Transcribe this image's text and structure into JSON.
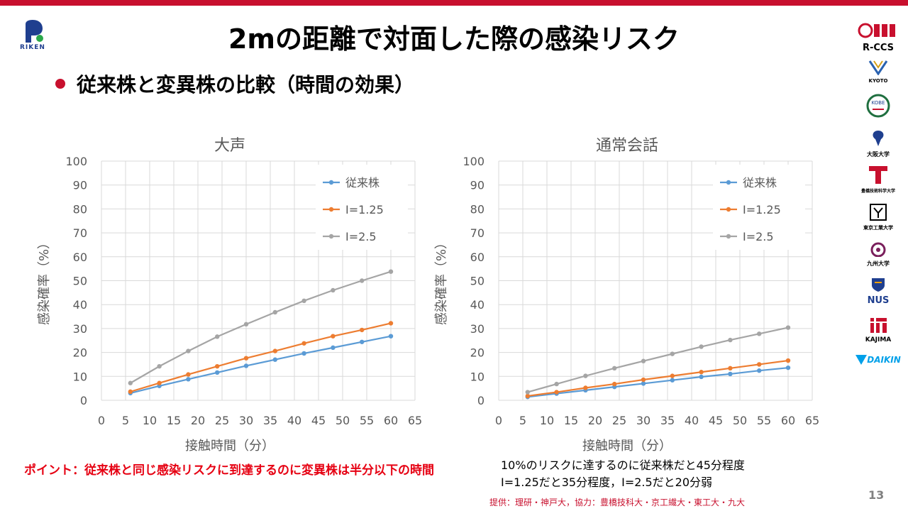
{
  "slide": {
    "title": "2mの距離で対面した際の感染リスク",
    "subtitle": "従来株と変異株の比較（時間の効果）",
    "point_text": "ポイント：従来株と同じ感染リスクに到達するのに変異株は半分以下の時間",
    "note_line1": "10%のリスクに達するのに従来株だと45分程度",
    "note_line2": "I=1.25だと35分程度，I=2.5だと20分弱",
    "credit": "提供：理研・神戸大，協力：豊橋技科大・京工繊大・東工大・九大",
    "page_number": "13",
    "colors": {
      "accent": "#c8102e",
      "point_text": "#e60012"
    }
  },
  "logos": {
    "riken": "RIKEN",
    "rccs": "R-CCS",
    "kyoto": "KYOTO",
    "kobe": "KOBE",
    "osaka": "大阪大学",
    "toyohashi": "豊橋技術科学大学",
    "tokyo_tech": "東京工業大学",
    "kyushu": "九州大学",
    "nus": "NUS",
    "kajima": "KAJIMA",
    "daikin": "DAIKIN"
  },
  "chart_data": [
    {
      "type": "line",
      "title": "大声",
      "xlabel": "接触時間（分）",
      "ylabel": "感染確率（%）",
      "xlim": [
        0,
        65
      ],
      "ylim": [
        0,
        100
      ],
      "xticks": [
        0,
        5,
        10,
        15,
        20,
        25,
        30,
        35,
        40,
        45,
        50,
        55,
        60,
        65
      ],
      "yticks": [
        0,
        10,
        20,
        30,
        40,
        50,
        60,
        70,
        80,
        90,
        100
      ],
      "grid": true,
      "legend_position": "top-right",
      "x": [
        6,
        12,
        18,
        24,
        30,
        36,
        42,
        48,
        54,
        60
      ],
      "series": [
        {
          "name": "従来株",
          "color": "#5b9bd5",
          "values": [
            3,
            6,
            8.8,
            11.6,
            14.4,
            17,
            19.6,
            22,
            24.4,
            26.8
          ]
        },
        {
          "name": "I=1.25",
          "color": "#ed7d31",
          "values": [
            3.6,
            7.2,
            10.8,
            14.2,
            17.6,
            20.6,
            23.8,
            26.8,
            29.4,
            32.2
          ]
        },
        {
          "name": "I=2.5",
          "color": "#a5a5a5",
          "values": [
            7.2,
            14.2,
            20.6,
            26.6,
            31.8,
            36.8,
            41.6,
            46,
            50,
            53.8
          ]
        }
      ]
    },
    {
      "type": "line",
      "title": "通常会話",
      "xlabel": "接触時間（分）",
      "ylabel": "感染確率（%）",
      "xlim": [
        0,
        65
      ],
      "ylim": [
        0,
        100
      ],
      "xticks": [
        0,
        5,
        10,
        15,
        20,
        25,
        30,
        35,
        40,
        45,
        50,
        55,
        60,
        65
      ],
      "yticks": [
        0,
        10,
        20,
        30,
        40,
        50,
        60,
        70,
        80,
        90,
        100
      ],
      "grid": true,
      "legend_position": "top-right",
      "x": [
        6,
        12,
        18,
        24,
        30,
        36,
        42,
        48,
        54,
        60
      ],
      "series": [
        {
          "name": "従来株",
          "color": "#5b9bd5",
          "values": [
            1.4,
            2.8,
            4.2,
            5.6,
            7,
            8.4,
            9.8,
            11,
            12.4,
            13.6
          ]
        },
        {
          "name": "I=1.25",
          "color": "#ed7d31",
          "values": [
            1.8,
            3.4,
            5.2,
            6.8,
            8.6,
            10.2,
            11.8,
            13.4,
            15,
            16.6
          ]
        },
        {
          "name": "I=2.5",
          "color": "#a5a5a5",
          "values": [
            3.4,
            6.8,
            10.2,
            13.4,
            16.4,
            19.4,
            22.4,
            25.2,
            27.8,
            30.4
          ]
        }
      ]
    }
  ]
}
